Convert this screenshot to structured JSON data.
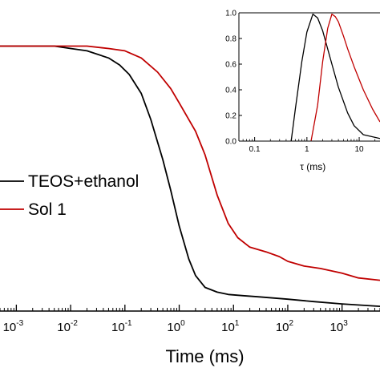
{
  "chart_data": [
    {
      "type": "line",
      "title": "",
      "xlabel": "Time (ms)",
      "ylabel": "",
      "xscale": "log",
      "xlim": [
        0.0005,
        5000
      ],
      "ylim": [
        -0.02,
        1.2
      ],
      "x_ticks": [
        {
          "value": 0.001,
          "base": "10",
          "exp": "-3"
        },
        {
          "value": 0.01,
          "base": "10",
          "exp": "-2"
        },
        {
          "value": 0.1,
          "base": "10",
          "exp": "-1"
        },
        {
          "value": 1,
          "base": "10",
          "exp": "0"
        },
        {
          "value": 10,
          "base": "10",
          "exp": "1"
        },
        {
          "value": 100,
          "base": "10",
          "exp": "2"
        },
        {
          "value": 1000,
          "base": "10",
          "exp": "3"
        }
      ],
      "legend_position": "center-right",
      "series": [
        {
          "name": "TEOS+ethanol",
          "color": "#000000",
          "x": [
            0.0005,
            0.002,
            0.005,
            0.01,
            0.02,
            0.05,
            0.08,
            0.12,
            0.2,
            0.3,
            0.5,
            0.7,
            1.0,
            1.5,
            2.0,
            3.0,
            5.0,
            8.0,
            15,
            30,
            100,
            300,
            1000,
            5000
          ],
          "y": [
            1.1,
            1.1,
            1.1,
            1.09,
            1.08,
            1.05,
            1.02,
            0.98,
            0.9,
            0.79,
            0.62,
            0.49,
            0.34,
            0.2,
            0.13,
            0.08,
            0.06,
            0.05,
            0.045,
            0.04,
            0.03,
            0.02,
            0.01,
            0.0
          ]
        },
        {
          "name": "Sol 1",
          "color": "#c00000",
          "x": [
            0.0005,
            0.002,
            0.005,
            0.01,
            0.02,
            0.05,
            0.1,
            0.2,
            0.4,
            0.7,
            1.0,
            2.0,
            3.0,
            5.0,
            8.0,
            12,
            20,
            40,
            70,
            100,
            200,
            400,
            1000,
            2000,
            5000
          ],
          "y": [
            1.1,
            1.1,
            1.1,
            1.1,
            1.1,
            1.09,
            1.08,
            1.05,
            0.99,
            0.92,
            0.86,
            0.74,
            0.64,
            0.47,
            0.35,
            0.29,
            0.25,
            0.23,
            0.21,
            0.19,
            0.17,
            0.16,
            0.14,
            0.12,
            0.11
          ]
        }
      ]
    },
    {
      "type": "line",
      "title": "",
      "xlabel": "τ (ms)",
      "ylabel": "",
      "xscale": "log",
      "xlim": [
        0.05,
        25
      ],
      "ylim": [
        0,
        1.0
      ],
      "x_ticks": [
        {
          "value": 0.1,
          "label": "0.1"
        },
        {
          "value": 1,
          "label": "1"
        },
        {
          "value": 10,
          "label": "10"
        }
      ],
      "y_ticks": [
        {
          "value": 0.0,
          "label": "0.0"
        },
        {
          "value": 0.2,
          "label": "0.2"
        },
        {
          "value": 0.4,
          "label": "0.4"
        },
        {
          "value": 0.6,
          "label": "0.6"
        },
        {
          "value": 0.8,
          "label": "0.8"
        },
        {
          "value": 1.0,
          "label": "1.0"
        }
      ],
      "series": [
        {
          "name": "TEOS+ethanol",
          "color": "#000000",
          "x": [
            0.5,
            0.6,
            0.8,
            1.0,
            1.3,
            1.6,
            2.0,
            3.0,
            4.0,
            6.0,
            8.0,
            12,
            25
          ],
          "y": [
            0.0,
            0.25,
            0.62,
            0.85,
            0.99,
            0.96,
            0.86,
            0.6,
            0.42,
            0.22,
            0.12,
            0.05,
            0.02
          ]
        },
        {
          "name": "Sol 1",
          "color": "#c00000",
          "x": [
            1.2,
            1.6,
            2.0,
            2.5,
            3.0,
            3.5,
            4.0,
            5.0,
            6.0,
            8.0,
            12,
            18,
            25
          ],
          "y": [
            0.0,
            0.28,
            0.62,
            0.88,
            0.99,
            0.97,
            0.93,
            0.82,
            0.72,
            0.58,
            0.4,
            0.25,
            0.15
          ]
        }
      ]
    }
  ],
  "legend": [
    {
      "label": "TEOS+ethanol",
      "color": "#000000"
    },
    {
      "label": "Sol 1",
      "color": "#c00000"
    }
  ]
}
